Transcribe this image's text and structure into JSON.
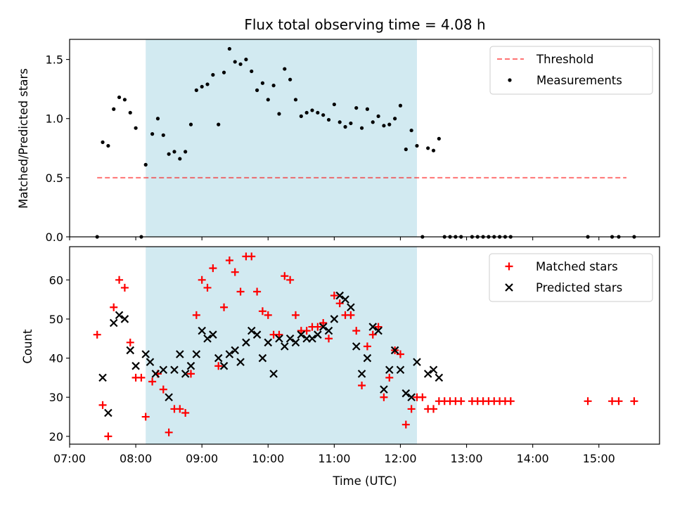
{
  "chart_data": [
    {
      "type": "scatter",
      "title": "Flux total observing time = 4.08 h",
      "ylabel": "Matched/Predicted stars",
      "ylim": [
        0,
        1.67
      ],
      "yticks": [
        0.0,
        0.5,
        1.0,
        1.5
      ],
      "ytick_labels": [
        "0.0",
        "0.5",
        "1.0",
        "1.5"
      ],
      "xlim": [
        "07:00",
        "15:55"
      ],
      "xticks": [
        "07:00",
        "08:00",
        "09:00",
        "10:00",
        "11:00",
        "12:00",
        "13:00",
        "14:00",
        "15:00"
      ],
      "grid": false,
      "legend_position": "top-right",
      "shaded_span": {
        "start": "08:09",
        "end": "12:15",
        "color": "#add8e6"
      },
      "threshold": {
        "name": "Threshold",
        "value": 0.5,
        "x_start": "07:25",
        "x_end": "15:25",
        "color": "#ff0000",
        "style": "dashed"
      },
      "series": [
        {
          "name": "Measurements",
          "marker": "dot",
          "color": "#000000",
          "points": [
            [
              "07:25",
              0.0
            ],
            [
              "07:30",
              0.8
            ],
            [
              "07:35",
              0.77
            ],
            [
              "07:40",
              1.08
            ],
            [
              "07:45",
              1.18
            ],
            [
              "07:50",
              1.16
            ],
            [
              "07:55",
              1.05
            ],
            [
              "08:00",
              0.92
            ],
            [
              "08:05",
              0.0
            ],
            [
              "08:09",
              0.61
            ],
            [
              "08:15",
              0.87
            ],
            [
              "08:20",
              1.0
            ],
            [
              "08:25",
              0.86
            ],
            [
              "08:30",
              0.7
            ],
            [
              "08:35",
              0.72
            ],
            [
              "08:40",
              0.66
            ],
            [
              "08:45",
              0.72
            ],
            [
              "08:50",
              0.95
            ],
            [
              "08:55",
              1.24
            ],
            [
              "09:00",
              1.27
            ],
            [
              "09:05",
              1.29
            ],
            [
              "09:10",
              1.37
            ],
            [
              "09:15",
              0.95
            ],
            [
              "09:20",
              1.39
            ],
            [
              "09:25",
              1.59
            ],
            [
              "09:30",
              1.48
            ],
            [
              "09:35",
              1.46
            ],
            [
              "09:40",
              1.5
            ],
            [
              "09:45",
              1.4
            ],
            [
              "09:50",
              1.24
            ],
            [
              "09:55",
              1.3
            ],
            [
              "10:00",
              1.16
            ],
            [
              "10:05",
              1.28
            ],
            [
              "10:10",
              1.04
            ],
            [
              "10:15",
              1.42
            ],
            [
              "10:20",
              1.33
            ],
            [
              "10:25",
              1.16
            ],
            [
              "10:30",
              1.02
            ],
            [
              "10:35",
              1.05
            ],
            [
              "10:40",
              1.07
            ],
            [
              "10:45",
              1.05
            ],
            [
              "10:50",
              1.03
            ],
            [
              "10:55",
              0.99
            ],
            [
              "11:00",
              1.12
            ],
            [
              "11:05",
              0.97
            ],
            [
              "11:10",
              0.93
            ],
            [
              "11:15",
              0.96
            ],
            [
              "11:20",
              1.09
            ],
            [
              "11:25",
              0.92
            ],
            [
              "11:30",
              1.08
            ],
            [
              "11:35",
              0.97
            ],
            [
              "11:40",
              1.02
            ],
            [
              "11:45",
              0.94
            ],
            [
              "11:50",
              0.95
            ],
            [
              "11:55",
              1.0
            ],
            [
              "12:00",
              1.11
            ],
            [
              "12:05",
              0.74
            ],
            [
              "12:10",
              0.9
            ],
            [
              "12:15",
              0.77
            ],
            [
              "12:20",
              0.0
            ],
            [
              "12:25",
              0.75
            ],
            [
              "12:30",
              0.73
            ],
            [
              "12:35",
              0.83
            ],
            [
              "12:40",
              0.0
            ],
            [
              "12:45",
              0.0
            ],
            [
              "12:50",
              0.0
            ],
            [
              "12:55",
              0.0
            ],
            [
              "13:05",
              0.0
            ],
            [
              "13:10",
              0.0
            ],
            [
              "13:15",
              0.0
            ],
            [
              "13:20",
              0.0
            ],
            [
              "13:25",
              0.0
            ],
            [
              "13:30",
              0.0
            ],
            [
              "13:35",
              0.0
            ],
            [
              "13:40",
              0.0
            ],
            [
              "14:50",
              0.0
            ],
            [
              "15:12",
              0.0
            ],
            [
              "15:18",
              0.0
            ],
            [
              "15:32",
              0.0
            ]
          ]
        }
      ]
    },
    {
      "type": "scatter",
      "xlabel": "Time (UTC)",
      "ylabel": "Count",
      "ylim": [
        18,
        68.5
      ],
      "yticks": [
        20,
        30,
        40,
        50,
        60
      ],
      "ytick_labels": [
        "20",
        "30",
        "40",
        "50",
        "60"
      ],
      "xlim": [
        "07:00",
        "15:55"
      ],
      "xticks": [
        "07:00",
        "08:00",
        "09:00",
        "10:00",
        "11:00",
        "12:00",
        "13:00",
        "14:00",
        "15:00"
      ],
      "xtick_labels": [
        "07:00",
        "08:00",
        "09:00",
        "10:00",
        "11:00",
        "12:00",
        "13:00",
        "14:00",
        "15:00"
      ],
      "grid": false,
      "legend_position": "top-right",
      "shaded_span": {
        "start": "08:09",
        "end": "12:15",
        "color": "#add8e6"
      },
      "series": [
        {
          "name": "Matched stars",
          "marker": "plus",
          "color": "#ff0000",
          "points": [
            [
              "07:25",
              46
            ],
            [
              "07:30",
              28
            ],
            [
              "07:35",
              20
            ],
            [
              "07:40",
              53
            ],
            [
              "07:45",
              60
            ],
            [
              "07:50",
              58
            ],
            [
              "07:55",
              44
            ],
            [
              "08:00",
              35
            ],
            [
              "08:05",
              35
            ],
            [
              "08:09",
              25
            ],
            [
              "08:15",
              34
            ],
            [
              "08:20",
              36
            ],
            [
              "08:25",
              32
            ],
            [
              "08:30",
              21
            ],
            [
              "08:35",
              27
            ],
            [
              "08:40",
              27
            ],
            [
              "08:45",
              26
            ],
            [
              "08:50",
              36
            ],
            [
              "08:55",
              51
            ],
            [
              "09:00",
              60
            ],
            [
              "09:05",
              58
            ],
            [
              "09:10",
              63
            ],
            [
              "09:15",
              38
            ],
            [
              "09:20",
              53
            ],
            [
              "09:25",
              65
            ],
            [
              "09:30",
              62
            ],
            [
              "09:35",
              57
            ],
            [
              "09:40",
              66
            ],
            [
              "09:45",
              66
            ],
            [
              "09:50",
              57
            ],
            [
              "09:55",
              52
            ],
            [
              "10:00",
              51
            ],
            [
              "10:05",
              46
            ],
            [
              "10:10",
              46
            ],
            [
              "10:15",
              61
            ],
            [
              "10:20",
              60
            ],
            [
              "10:25",
              51
            ],
            [
              "10:30",
              47
            ],
            [
              "10:35",
              47
            ],
            [
              "10:40",
              48
            ],
            [
              "10:45",
              48
            ],
            [
              "10:50",
              49
            ],
            [
              "10:55",
              45
            ],
            [
              "11:00",
              56
            ],
            [
              "11:05",
              54
            ],
            [
              "11:10",
              51
            ],
            [
              "11:15",
              51
            ],
            [
              "11:20",
              47
            ],
            [
              "11:25",
              33
            ],
            [
              "11:30",
              43
            ],
            [
              "11:35",
              46
            ],
            [
              "11:40",
              48
            ],
            [
              "11:45",
              30
            ],
            [
              "11:50",
              35
            ],
            [
              "11:55",
              42
            ],
            [
              "12:00",
              41
            ],
            [
              "12:05",
              23
            ],
            [
              "12:10",
              27
            ],
            [
              "12:15",
              30
            ],
            [
              "12:20",
              30
            ],
            [
              "12:25",
              27
            ],
            [
              "12:30",
              27
            ],
            [
              "12:35",
              29
            ],
            [
              "12:40",
              29
            ],
            [
              "12:45",
              29
            ],
            [
              "12:50",
              29
            ],
            [
              "12:55",
              29
            ],
            [
              "13:05",
              29
            ],
            [
              "13:10",
              29
            ],
            [
              "13:15",
              29
            ],
            [
              "13:20",
              29
            ],
            [
              "13:25",
              29
            ],
            [
              "13:30",
              29
            ],
            [
              "13:35",
              29
            ],
            [
              "13:40",
              29
            ],
            [
              "14:50",
              29
            ],
            [
              "15:12",
              29
            ],
            [
              "15:18",
              29
            ],
            [
              "15:32",
              29
            ]
          ]
        },
        {
          "name": "Predicted stars",
          "marker": "x",
          "color": "#000000",
          "points": [
            [
              "07:30",
              35
            ],
            [
              "07:35",
              26
            ],
            [
              "07:40",
              49
            ],
            [
              "07:45",
              51
            ],
            [
              "07:50",
              50
            ],
            [
              "07:55",
              42
            ],
            [
              "08:00",
              38
            ],
            [
              "08:09",
              41
            ],
            [
              "08:13",
              39
            ],
            [
              "08:18",
              36
            ],
            [
              "08:25",
              37
            ],
            [
              "08:30",
              30
            ],
            [
              "08:35",
              37
            ],
            [
              "08:40",
              41
            ],
            [
              "08:45",
              36
            ],
            [
              "08:50",
              38
            ],
            [
              "08:55",
              41
            ],
            [
              "09:00",
              47
            ],
            [
              "09:05",
              45
            ],
            [
              "09:10",
              46
            ],
            [
              "09:15",
              40
            ],
            [
              "09:20",
              38
            ],
            [
              "09:25",
              41
            ],
            [
              "09:30",
              42
            ],
            [
              "09:35",
              39
            ],
            [
              "09:40",
              44
            ],
            [
              "09:45",
              47
            ],
            [
              "09:50",
              46
            ],
            [
              "09:55",
              40
            ],
            [
              "10:00",
              44
            ],
            [
              "10:05",
              36
            ],
            [
              "10:10",
              45
            ],
            [
              "10:15",
              43
            ],
            [
              "10:20",
              45
            ],
            [
              "10:25",
              44
            ],
            [
              "10:30",
              46
            ],
            [
              "10:35",
              45
            ],
            [
              "10:40",
              45
            ],
            [
              "10:45",
              46
            ],
            [
              "10:50",
              48
            ],
            [
              "10:55",
              47
            ],
            [
              "11:00",
              50
            ],
            [
              "11:05",
              56
            ],
            [
              "11:10",
              55
            ],
            [
              "11:15",
              53
            ],
            [
              "11:20",
              43
            ],
            [
              "11:25",
              36
            ],
            [
              "11:30",
              40
            ],
            [
              "11:35",
              48
            ],
            [
              "11:40",
              47
            ],
            [
              "11:45",
              32
            ],
            [
              "11:50",
              37
            ],
            [
              "11:55",
              42
            ],
            [
              "12:00",
              37
            ],
            [
              "12:05",
              31
            ],
            [
              "12:10",
              30
            ],
            [
              "12:15",
              39
            ],
            [
              "12:25",
              36
            ],
            [
              "12:30",
              37
            ],
            [
              "12:35",
              35
            ]
          ]
        }
      ]
    }
  ]
}
